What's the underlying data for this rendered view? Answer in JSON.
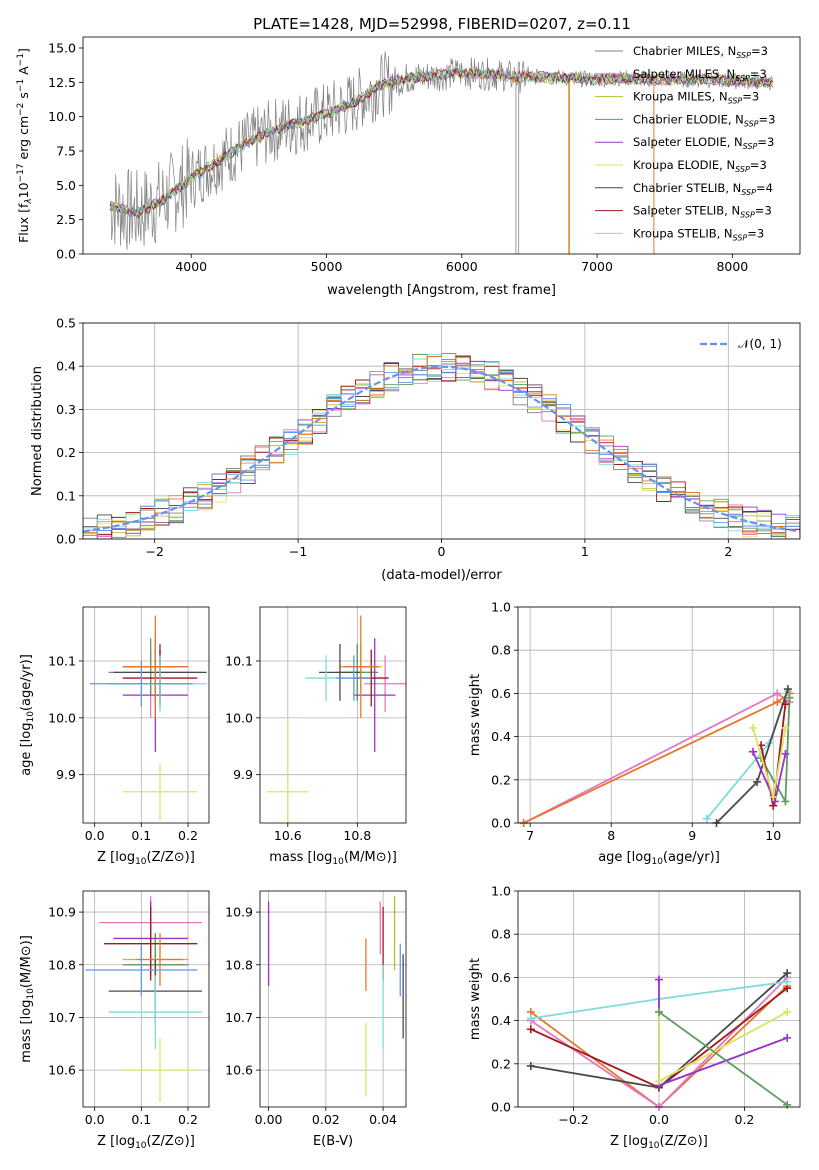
{
  "figure": {
    "title": "PLATE=1428, MJD=52998, FIBERID=0207, z=0.11"
  },
  "colors": {
    "Chabrier MILES": "#808080",
    "Salpeter MILES": "#e377c2",
    "Kroupa MILES": "#bcbd22",
    "Chabrier ELODIE": "#5e9c60",
    "Salpeter ELODIE": "#9932cc",
    "Kroupa ELODIE": "#dbe462",
    "Chabrier STELIB": "#4a4a4a",
    "Salpeter STELIB": "#a51619",
    "Kroupa STELIB": "#7fdbdc",
    "orange": "#e6772a",
    "blue": "#6495ed"
  },
  "chart_data": [
    {
      "id": "spectrum",
      "type": "line",
      "xlabel": "wavelength [Angstrom, rest frame]",
      "ylabel": "Flux [f",
      "ylabel_parts": [
        "Flux [f",
        "λ",
        "10",
        "−17",
        " erg cm",
        "−2",
        " s",
        "−1",
        " A",
        "−1",
        "]"
      ],
      "xlim": [
        3200,
        8500
      ],
      "ylim": [
        0,
        15.8
      ],
      "xticks": [
        4000,
        5000,
        6000,
        7000,
        8000
      ],
      "yticks": [
        0.0,
        2.5,
        5.0,
        7.5,
        10.0,
        12.5,
        15.0
      ],
      "x_range_data": [
        3400,
        8300
      ],
      "continuum": {
        "x": [
          3400,
          3600,
          3800,
          4000,
          4200,
          4400,
          4600,
          4800,
          5000,
          5200,
          5400,
          5600,
          5800,
          6000,
          6200,
          6400,
          6600,
          6800,
          7000,
          7200,
          7400,
          7600,
          7800,
          8000,
          8300
        ],
        "y": [
          3.5,
          3.0,
          4.0,
          5.5,
          6.8,
          8.0,
          9.0,
          9.6,
          10.2,
          11.0,
          12.3,
          12.8,
          13.0,
          13.2,
          13.1,
          12.9,
          12.9,
          12.8,
          12.7,
          12.8,
          12.7,
          12.7,
          12.7,
          12.6,
          12.5
        ]
      },
      "series": [
        {
          "name": "Chabrier MILES",
          "nssp": "3"
        },
        {
          "name": "Salpeter MILES",
          "nssp": "3"
        },
        {
          "name": "Kroupa MILES",
          "nssp": "3"
        },
        {
          "name": "Chabrier ELODIE",
          "nssp": "3"
        },
        {
          "name": "Salpeter ELODIE",
          "nssp": "3"
        },
        {
          "name": "Kroupa ELODIE",
          "nssp": "3"
        },
        {
          "name": "Chabrier STELIB",
          "nssp": "4"
        },
        {
          "name": "Salpeter STELIB",
          "nssp": "3"
        },
        {
          "name": "Kroupa STELIB",
          "nssp": "3"
        }
      ],
      "legend_placement": "right"
    },
    {
      "id": "residuals",
      "type": "histogram",
      "xlabel": "(data-model)/error",
      "ylabel": "Normed distribution",
      "xlim": [
        -2.5,
        2.5
      ],
      "ylim": [
        0,
        0.5
      ],
      "xticks": [
        -2,
        -1,
        0,
        1,
        2
      ],
      "yticks": [
        0.0,
        0.1,
        0.2,
        0.3,
        0.4,
        0.5
      ],
      "bin_width": 0.1,
      "grid": true,
      "legend": "𝒩(0, 1)",
      "legend_placement": "top-right",
      "gaussian": {
        "mean": 0,
        "sigma": 1
      }
    },
    {
      "id": "age-vs-Z",
      "type": "errorbar",
      "xlabel": "Z [log",
      "ylabel": "age [log",
      "xlim": [
        -0.025,
        0.245
      ],
      "ylim": [
        9.815,
        10.195
      ],
      "xticks": [
        0.0,
        0.1,
        0.2
      ],
      "yticks": [
        9.9,
        10.0,
        10.1
      ],
      "points": [
        {
          "series": "Chabrier MILES",
          "x": 0.13,
          "y": 10.08,
          "xerr": 0.1,
          "yerr": 0.05
        },
        {
          "series": "Salpeter MILES",
          "x": 0.12,
          "y": 10.06,
          "xerr": 0.09,
          "yerr": 0.06
        },
        {
          "series": "Kroupa MILES",
          "x": 0.13,
          "y": 10.09,
          "xerr": 0.07,
          "yerr": 0.04
        },
        {
          "series": "Chabrier ELODIE",
          "x": 0.12,
          "y": 10.09,
          "xerr": 0.06,
          "yerr": 0.05
        },
        {
          "series": "Salpeter ELODIE",
          "x": 0.13,
          "y": 10.04,
          "xerr": 0.07,
          "yerr": 0.1
        },
        {
          "series": "Kroupa ELODIE",
          "x": 0.14,
          "y": 9.87,
          "xerr": 0.08,
          "yerr": 0.05
        },
        {
          "series": "Chabrier STELIB",
          "x": 0.14,
          "y": 10.08,
          "xerr": 0.1,
          "yerr": 0.05
        },
        {
          "series": "Salpeter STELIB",
          "x": 0.14,
          "y": 10.07,
          "xerr": 0.08,
          "yerr": 0.05
        },
        {
          "series": "Kroupa STELIB",
          "x": 0.14,
          "y": 10.06,
          "xerr": 0.1,
          "yerr": 0.05
        },
        {
          "series": "orange",
          "x": 0.13,
          "y": 10.09,
          "xerr": 0.07,
          "yerr": 0.09
        },
        {
          "series": "blue",
          "x": 0.1,
          "y": 10.06,
          "xerr": 0.11,
          "yerr": 0.04
        }
      ]
    },
    {
      "id": "age-vs-mass",
      "type": "errorbar",
      "xlabel": "mass [log",
      "ylabel": "",
      "xlim": [
        10.52,
        10.94
      ],
      "ylim": [
        9.815,
        10.195
      ],
      "xticks": [
        10.6,
        10.8
      ],
      "yticks": [
        9.9,
        10.0,
        10.1
      ],
      "points": [
        {
          "series": "Chabrier MILES",
          "x": 10.8,
          "y": 10.08,
          "xerr": 0.06,
          "yerr": 0.05
        },
        {
          "series": "Salpeter MILES",
          "x": 10.88,
          "y": 10.06,
          "xerr": 0.06,
          "yerr": 0.05
        },
        {
          "series": "Kroupa MILES",
          "x": 10.81,
          "y": 10.09,
          "xerr": 0.06,
          "yerr": 0.04
        },
        {
          "series": "Chabrier ELODIE",
          "x": 10.8,
          "y": 10.08,
          "xerr": 0.05,
          "yerr": 0.05
        },
        {
          "series": "Salpeter ELODIE",
          "x": 10.85,
          "y": 10.04,
          "xerr": 0.06,
          "yerr": 0.1
        },
        {
          "series": "Kroupa ELODIE",
          "x": 10.6,
          "y": 9.87,
          "xerr": 0.06,
          "yerr": 0.13
        },
        {
          "series": "Chabrier STELIB",
          "x": 10.75,
          "y": 10.08,
          "xerr": 0.06,
          "yerr": 0.05
        },
        {
          "series": "Salpeter STELIB",
          "x": 10.84,
          "y": 10.07,
          "xerr": 0.05,
          "yerr": 0.05
        },
        {
          "series": "Kroupa STELIB",
          "x": 10.71,
          "y": 10.07,
          "xerr": 0.06,
          "yerr": 0.04
        },
        {
          "series": "orange",
          "x": 10.81,
          "y": 10.09,
          "xerr": 0.05,
          "yerr": 0.09
        },
        {
          "series": "blue",
          "x": 10.79,
          "y": 10.07,
          "xerr": 0.05,
          "yerr": 0.04
        }
      ]
    },
    {
      "id": "weight-vs-age",
      "type": "line",
      "xlabel": "age [log",
      "ylabel": "mass weight",
      "xlim": [
        6.85,
        10.33
      ],
      "ylim": [
        0,
        1
      ],
      "xticks": [
        7,
        8,
        9,
        10
      ],
      "yticks": [
        0.0,
        0.2,
        0.4,
        0.6,
        0.8,
        1.0
      ],
      "grid": true,
      "series": [
        {
          "series": "Salpeter MILES",
          "x": [
            6.92,
            10.05,
            10.2
          ],
          "y": [
            0.0,
            0.6,
            0.56
          ]
        },
        {
          "series": "orange",
          "x": [
            6.92,
            10.05,
            10.2
          ],
          "y": [
            0.0,
            0.56,
            0.6
          ]
        },
        {
          "series": "Kroupa STELIB",
          "x": [
            9.18,
            9.95,
            10.18
          ],
          "y": [
            0.02,
            0.37,
            0.61
          ]
        },
        {
          "series": "Chabrier STELIB",
          "x": [
            9.3,
            9.8,
            10.18
          ],
          "y": [
            0.0,
            0.19,
            0.62
          ]
        },
        {
          "series": "Chabrier ELODIE",
          "x": [
            9.85,
            10.15,
            10.2
          ],
          "y": [
            0.3,
            0.1,
            0.58
          ]
        },
        {
          "series": "Salpeter STELIB",
          "x": [
            9.85,
            10.0,
            10.15
          ],
          "y": [
            0.36,
            0.08,
            0.55
          ]
        },
        {
          "series": "Salpeter ELODIE",
          "x": [
            9.75,
            10.02,
            10.15
          ],
          "y": [
            0.33,
            0.1,
            0.32
          ]
        },
        {
          "series": "Kroupa ELODIE",
          "x": [
            9.75,
            10.0,
            10.15
          ],
          "y": [
            0.44,
            0.12,
            0.44
          ]
        }
      ]
    },
    {
      "id": "mass-vs-Z",
      "type": "errorbar",
      "xlabel": "Z [log",
      "ylabel": "mass [log",
      "xlim": [
        -0.025,
        0.245
      ],
      "ylim": [
        10.53,
        10.94
      ],
      "xticks": [
        0.0,
        0.1,
        0.2
      ],
      "yticks": [
        10.6,
        10.7,
        10.8,
        10.9
      ],
      "points": [
        {
          "series": "Chabrier MILES",
          "x": 0.13,
          "y": 10.8,
          "xerr": 0.07,
          "yerr": 0.06
        },
        {
          "series": "Salpeter MILES",
          "x": 0.12,
          "y": 10.88,
          "xerr": 0.11,
          "yerr": 0.05
        },
        {
          "series": "Kroupa MILES",
          "x": 0.13,
          "y": 10.81,
          "xerr": 0.07,
          "yerr": 0.05
        },
        {
          "series": "Chabrier ELODIE",
          "x": 0.13,
          "y": 10.8,
          "xerr": 0.06,
          "yerr": 0.06
        },
        {
          "series": "Salpeter ELODIE",
          "x": 0.12,
          "y": 10.85,
          "xerr": 0.08,
          "yerr": 0.07
        },
        {
          "series": "Kroupa ELODIE",
          "x": 0.14,
          "y": 10.6,
          "xerr": 0.08,
          "yerr": 0.06
        },
        {
          "series": "Chabrier STELIB",
          "x": 0.13,
          "y": 10.75,
          "xerr": 0.1,
          "yerr": 0.06
        },
        {
          "series": "Salpeter STELIB",
          "x": 0.12,
          "y": 10.84,
          "xerr": 0.1,
          "yerr": 0.07
        },
        {
          "series": "Kroupa STELIB",
          "x": 0.13,
          "y": 10.71,
          "xerr": 0.1,
          "yerr": 0.07
        },
        {
          "series": "orange",
          "x": 0.14,
          "y": 10.81,
          "xerr": 0.05,
          "yerr": 0.05
        },
        {
          "series": "blue",
          "x": 0.1,
          "y": 10.79,
          "xerr": 0.12,
          "yerr": 0.05
        }
      ]
    },
    {
      "id": "mass-vs-ebv",
      "type": "errorbar",
      "xlabel": "E(B-V)",
      "ylabel": "",
      "xlim": [
        -0.003,
        0.048
      ],
      "ylim": [
        10.53,
        10.94
      ],
      "xticks": [
        0.0,
        0.02,
        0.04
      ],
      "xtick_labels": [
        "0.00",
        "0.02",
        "0.04"
      ],
      "yticks": [
        10.6,
        10.7,
        10.8,
        10.9
      ],
      "points": [
        {
          "series": "Salpeter ELODIE",
          "x": 0.0,
          "y": 10.84,
          "xerr": 0,
          "yerr": 0.08
        },
        {
          "series": "orange",
          "x": 0.034,
          "y": 10.8,
          "xerr": 0,
          "yerr": 0.05
        },
        {
          "series": "Kroupa ELODIE",
          "x": 0.034,
          "y": 10.62,
          "xerr": 0,
          "yerr": 0.07
        },
        {
          "series": "Salpeter STELIB",
          "x": 0.04,
          "y": 10.84,
          "xerr": 0,
          "yerr": 0.07
        },
        {
          "series": "Salpeter MILES",
          "x": 0.039,
          "y": 10.87,
          "xerr": 0,
          "yerr": 0.05
        },
        {
          "series": "Kroupa STELIB",
          "x": 0.04,
          "y": 10.72,
          "xerr": 0,
          "yerr": 0.08
        },
        {
          "series": "Kroupa MILES",
          "x": 0.044,
          "y": 10.86,
          "xerr": 0,
          "yerr": 0.07
        },
        {
          "series": "Chabrier STELIB",
          "x": 0.047,
          "y": 10.74,
          "xerr": 0,
          "yerr": 0.08
        },
        {
          "series": "blue",
          "x": 0.046,
          "y": 10.79,
          "xerr": 0,
          "yerr": 0.05
        }
      ]
    },
    {
      "id": "weight-vs-Z",
      "type": "line",
      "xlabel": "Z [log",
      "ylabel": "mass weight",
      "xlim": [
        -0.33,
        0.33
      ],
      "ylim": [
        0,
        1
      ],
      "xticks": [
        -0.2,
        0.0,
        0.2
      ],
      "xtick_labels": [
        "−0.2",
        "0.0",
        "0.2"
      ],
      "yticks": [
        0.0,
        0.2,
        0.4,
        0.6,
        0.8,
        1.0
      ],
      "grid": true,
      "series": [
        {
          "series": "orange",
          "x": [
            -0.3,
            0.0,
            0.3
          ],
          "y": [
            0.44,
            0.0,
            0.56
          ]
        },
        {
          "series": "Salpeter MILES",
          "x": [
            -0.3,
            0.0,
            0.3
          ],
          "y": [
            0.4,
            0.0,
            0.6
          ]
        },
        {
          "series": "Salpeter STELIB",
          "x": [
            -0.3,
            0.0,
            0.3
          ],
          "y": [
            0.36,
            0.09,
            0.55
          ]
        },
        {
          "series": "Chabrier STELIB",
          "x": [
            -0.3,
            0.0,
            0.3
          ],
          "y": [
            0.19,
            0.09,
            0.62
          ]
        },
        {
          "series": "Kroupa STELIB",
          "x": [
            -0.3,
            0.0,
            0.3
          ],
          "y": [
            0.41,
            0.5,
            0.58
          ]
        },
        {
          "series": "Salpeter ELODIE",
          "x": [
            0.0,
            0.0,
            0.3
          ],
          "y": [
            0.59,
            0.1,
            0.32
          ]
        },
        {
          "series": "Kroupa ELODIE",
          "x": [
            0.0,
            0.0,
            0.3
          ],
          "y": [
            0.44,
            0.12,
            0.44
          ]
        },
        {
          "series": "Chabrier ELODIE",
          "x": [
            0.0,
            0.3
          ],
          "y": [
            0.44,
            0.01
          ]
        }
      ]
    }
  ]
}
